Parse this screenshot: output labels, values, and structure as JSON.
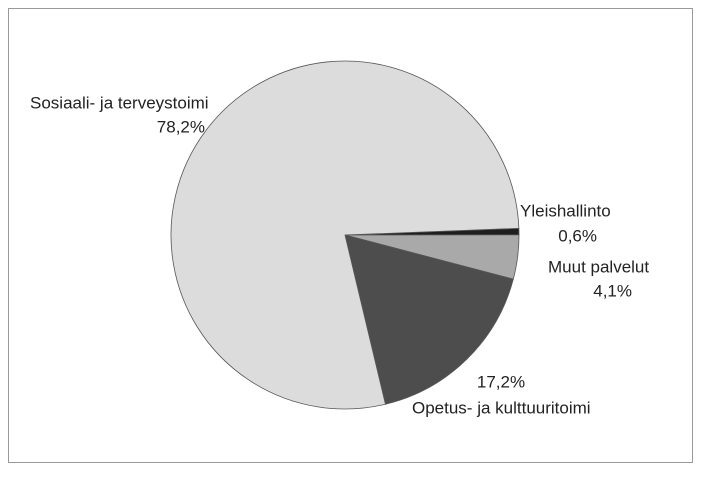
{
  "chart_data": {
    "type": "pie",
    "categories": [
      "Yleishallinto",
      "Muut palvelut",
      "Opetus- ja kulttuuritoimi",
      "Sosiaali- ja terveystoimi"
    ],
    "values": [
      0.6,
      4.1,
      17.2,
      78.2
    ],
    "value_labels": [
      "0,6%",
      "4,1%",
      "17,2%",
      "78,2%"
    ],
    "colors": [
      "#1e1e1e",
      "#a9a9a9",
      "#4d4d4d",
      "#dcdcdc"
    ]
  }
}
